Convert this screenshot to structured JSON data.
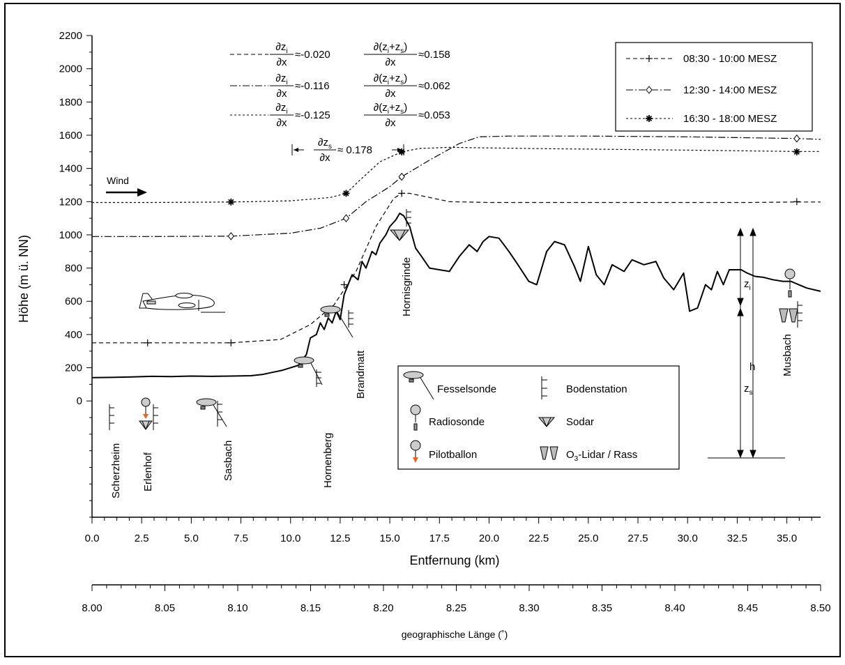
{
  "chart_data": {
    "type": "line",
    "xlabel": "Entfernung (km)",
    "ylabel": "Höhe (m ü. NN)",
    "xlim": [
      0,
      36.7
    ],
    "ylim": [
      -700,
      2200
    ],
    "x_ticks": [
      "0.0",
      "2.5",
      "5.0",
      "7.5",
      "10.0",
      "12.5",
      "15.0",
      "17.5",
      "20.0",
      "22.5",
      "25.0",
      "27.5",
      "30.0",
      "32.5",
      "35.0"
    ],
    "y_ticks": [
      "0",
      "200",
      "400",
      "600",
      "800",
      "1000",
      "1200",
      "1400",
      "1600",
      "1800",
      "2000",
      "2200"
    ],
    "secondary_axis": {
      "label": "geographische Länge (˚)",
      "range": [
        8.0,
        8.5
      ],
      "ticks": [
        "8.00",
        "8.05",
        "8.10",
        "8.15",
        "8.20",
        "8.25",
        "8.30",
        "8.35",
        "8.40",
        "8.45",
        "8.50"
      ]
    },
    "legend": {
      "position": "top-right",
      "entries": [
        "08:30 - 10:00 MESZ",
        "12:30 - 14:00 MESZ",
        "16:30 - 18:00 MESZ"
      ]
    },
    "series": [
      {
        "name": "08:30 - 10:00 MESZ",
        "style": "dashed",
        "marker": "+",
        "x": [
          0,
          2.8,
          7.0,
          9.5,
          11.0,
          12.2,
          13.3,
          14.3,
          15.2,
          15.6,
          16.0,
          16.8,
          18.0,
          20.0,
          25.0,
          30.0,
          33.0,
          35.5,
          36.7
        ],
        "y": [
          350,
          350,
          350,
          370,
          460,
          580,
          780,
          1050,
          1220,
          1250,
          1250,
          1230,
          1200,
          1195,
          1195,
          1195,
          1195,
          1198,
          1198
        ],
        "marker_x": [
          2.8,
          7.0,
          12.7,
          15.6,
          35.5
        ],
        "marker_y": [
          350,
          350,
          700,
          1250,
          1200
        ]
      },
      {
        "name": "12:30 - 14:00 MESZ",
        "style": "dash-dot",
        "marker": "diamond",
        "x": [
          0,
          3.0,
          7.0,
          10.0,
          11.5,
          12.8,
          13.8,
          15.0,
          15.6,
          17.0,
          18.5,
          19.5,
          21.0,
          25.0,
          30.0,
          35.5,
          36.7
        ],
        "y": [
          990,
          990,
          992,
          1010,
          1040,
          1100,
          1200,
          1290,
          1350,
          1450,
          1550,
          1590,
          1595,
          1595,
          1590,
          1580,
          1575
        ],
        "marker_x": [
          7.0,
          12.8,
          15.6,
          35.5
        ],
        "marker_y": [
          992,
          1100,
          1350,
          1580
        ]
      },
      {
        "name": "16:30 - 18:00 MESZ",
        "style": "dotted",
        "marker": "asterisk",
        "x": [
          0,
          3.0,
          7.0,
          10.0,
          12.0,
          12.8,
          13.5,
          14.5,
          15.6,
          16.5,
          18.0,
          22.0,
          30.0,
          35.5,
          36.7
        ],
        "y": [
          1195,
          1195,
          1198,
          1205,
          1225,
          1250,
          1330,
          1440,
          1500,
          1520,
          1527,
          1520,
          1510,
          1502,
          1502
        ],
        "marker_x": [
          7.0,
          12.8,
          15.6,
          35.5
        ],
        "marker_y": [
          1198,
          1250,
          1500,
          1500
        ]
      },
      {
        "style": "solid",
        "x": [
          0,
          1,
          2,
          3,
          4,
          5,
          6,
          7,
          8,
          8.6,
          9,
          9.6,
          10,
          10.4,
          10.8,
          11.0,
          11.3,
          11.5,
          11.7,
          11.9,
          12.1,
          12.3,
          12.5,
          12.7,
          12.9,
          13.1,
          13.4,
          13.6,
          13.8,
          14.1,
          14.3,
          14.5,
          14.8,
          15.0,
          15.3,
          15.5,
          15.7,
          16.0,
          16.3,
          16.6,
          17.0,
          17.5,
          18.0,
          18.5,
          19.0,
          19.4,
          19.7,
          20.0,
          20.5,
          21.0,
          21.4,
          22.0,
          22.4,
          22.9,
          23.3,
          23.8,
          24.3,
          24.6,
          25.0,
          25.4,
          25.8,
          26.2,
          26.8,
          27.2,
          27.8,
          28.4,
          28.8,
          29.3,
          29.8,
          30.1,
          30.5,
          30.9,
          31.2,
          31.5,
          31.8,
          32.1,
          32.4,
          32.7,
          33.0,
          33.4,
          33.8,
          34.3,
          34.8,
          35.2,
          35.6,
          36.0,
          36.7
        ],
        "y": [
          140,
          142,
          145,
          148,
          147,
          150,
          148,
          150,
          152,
          160,
          170,
          185,
          200,
          215,
          280,
          380,
          400,
          470,
          430,
          500,
          470,
          540,
          490,
          640,
          700,
          760,
          730,
          840,
          800,
          900,
          880,
          950,
          1000,
          1050,
          1090,
          1130,
          1115,
          1050,
          920,
          870,
          800,
          790,
          780,
          870,
          940,
          900,
          960,
          990,
          980,
          900,
          830,
          720,
          700,
          900,
          960,
          940,
          810,
          720,
          930,
          760,
          700,
          820,
          780,
          850,
          820,
          840,
          740,
          670,
          770,
          540,
          560,
          700,
          670,
          780,
          700,
          790,
          790,
          790,
          770,
          750,
          745,
          730,
          720,
          720,
          700,
          680,
          660
        ]
      }
    ],
    "annotations": [
      {
        "lhs_num": "∂z",
        "lhs_sub": "i",
        "lhs_den": "∂x",
        "lhs_val": "≈-0.020",
        "rhs_num": "∂(z",
        "rhs_sub1": "i",
        "rhs_mid": "+z",
        "rhs_sub2": "s",
        "rhs_end": ")",
        "rhs_den": "∂x",
        "rhs_val": "≈0.158"
      },
      {
        "lhs_num": "∂z",
        "lhs_sub": "i",
        "lhs_den": "∂x",
        "lhs_val": "≈-0.116",
        "rhs_num": "∂(z",
        "rhs_sub1": "i",
        "rhs_mid": "+z",
        "rhs_sub2": "s",
        "rhs_end": ")",
        "rhs_den": "∂x",
        "rhs_val": "≈0.062"
      },
      {
        "lhs_num": "∂z",
        "lhs_sub": "i",
        "lhs_den": "∂x",
        "lhs_val": "≈-0.125",
        "rhs_num": "∂(z",
        "rhs_sub1": "i",
        "rhs_mid": "+z",
        "rhs_sub2": "s",
        "rhs_end": ")",
        "rhs_den": "∂x",
        "rhs_val": "≈0.053"
      }
    ],
    "zs_gradient": {
      "num": "∂z",
      "sub": "s",
      "den": "∂x",
      "val": "≈ 0.178"
    },
    "wind_label": "Wind",
    "site_labels": [
      "Scherzheim",
      "Erlenhof",
      "Sasbach",
      "Hornenberg",
      "Brandmatt",
      "Hornisgrinde",
      "Musbach"
    ],
    "height_labels": {
      "zi": "z",
      "zi_sub": "i",
      "zs": "z",
      "zs_sub": "s",
      "h": "h"
    },
    "instrument_legend": [
      {
        "label": "Fesselsonde",
        "icon": "tethered-balloon-icon"
      },
      {
        "label": "Bodenstation",
        "icon": "ground-station-icon"
      },
      {
        "label": "Radiosonde",
        "icon": "radiosonde-icon"
      },
      {
        "label": "Sodar",
        "icon": "sodar-icon"
      },
      {
        "label": "Pilotballon",
        "icon": "pilot-balloon-icon"
      },
      {
        "label_prefix": "O",
        "label_sub": "3",
        "label_suffix": "-Lidar / Rass",
        "icon": "lidar-icon"
      }
    ],
    "colors": {
      "pilot_balloon": "#e8641e",
      "balloon_fill": "#cccccc",
      "instrument_fill": "#bbbbbb"
    }
  }
}
